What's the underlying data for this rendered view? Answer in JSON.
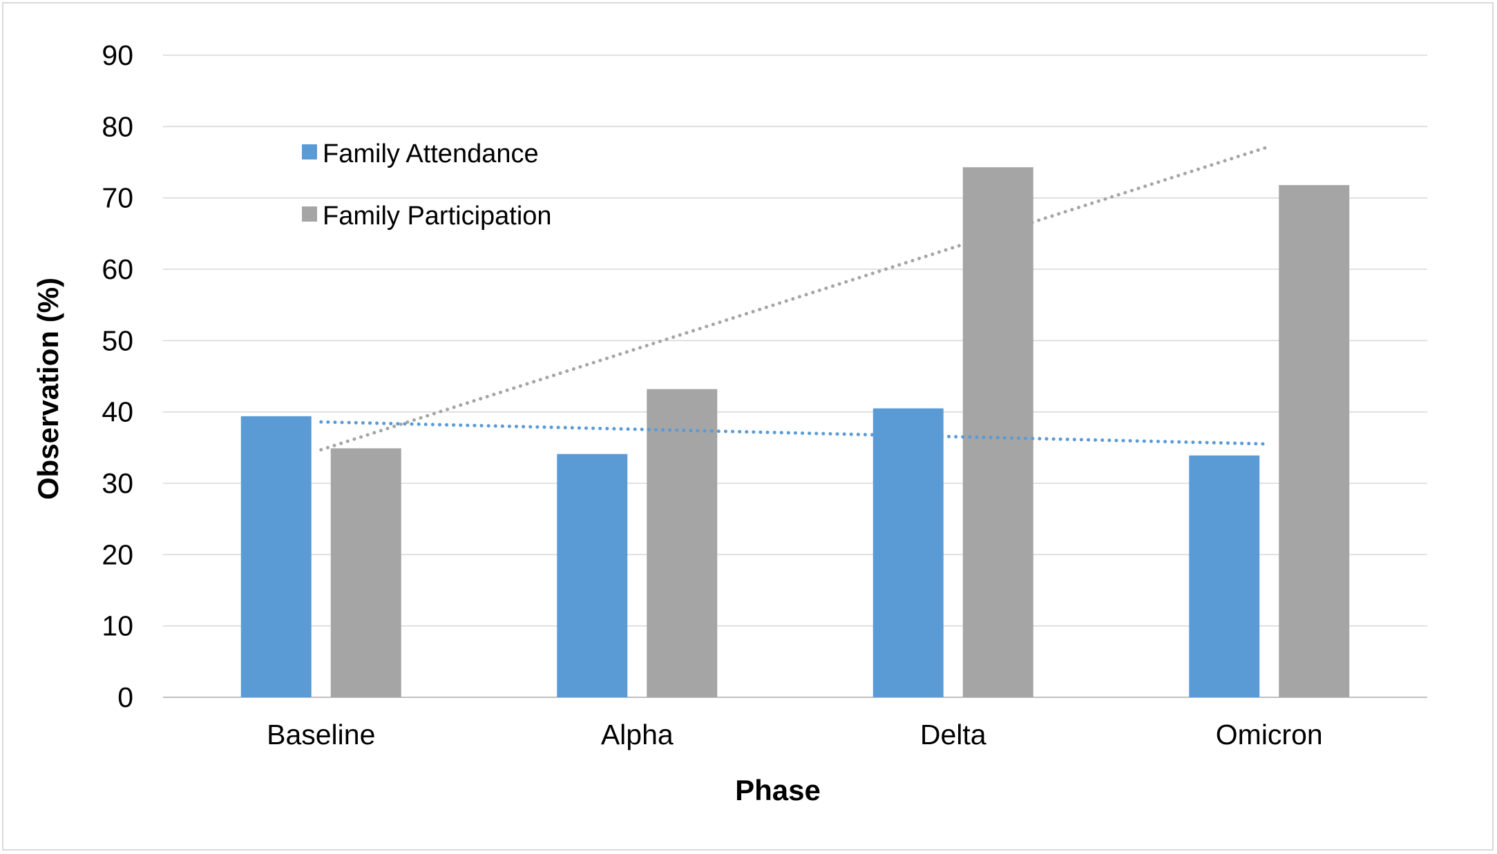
{
  "chart_data": {
    "type": "bar",
    "title": "",
    "xlabel": "Phase",
    "ylabel": "Observation (%)",
    "categories": [
      "Baseline",
      "Alpha",
      "Delta",
      "Omicron"
    ],
    "ylim": [
      0,
      90
    ],
    "yticks": [
      0,
      10,
      20,
      30,
      40,
      50,
      60,
      70,
      80,
      90
    ],
    "grid": true,
    "legend_position": "top-left",
    "series": [
      {
        "name": "Family Attendance",
        "color": "#5b9bd5",
        "values": [
          39.4,
          34.1,
          40.5,
          33.9
        ],
        "trendline": {
          "type": "linear",
          "style": "dotted",
          "start": 38.6,
          "end": 35.5
        }
      },
      {
        "name": "Family Participation",
        "color": "#a5a5a5",
        "values": [
          34.9,
          43.2,
          74.3,
          71.8
        ],
        "trendline": {
          "type": "linear",
          "style": "dotted",
          "start": 34.7,
          "end": 77.2
        }
      }
    ]
  }
}
